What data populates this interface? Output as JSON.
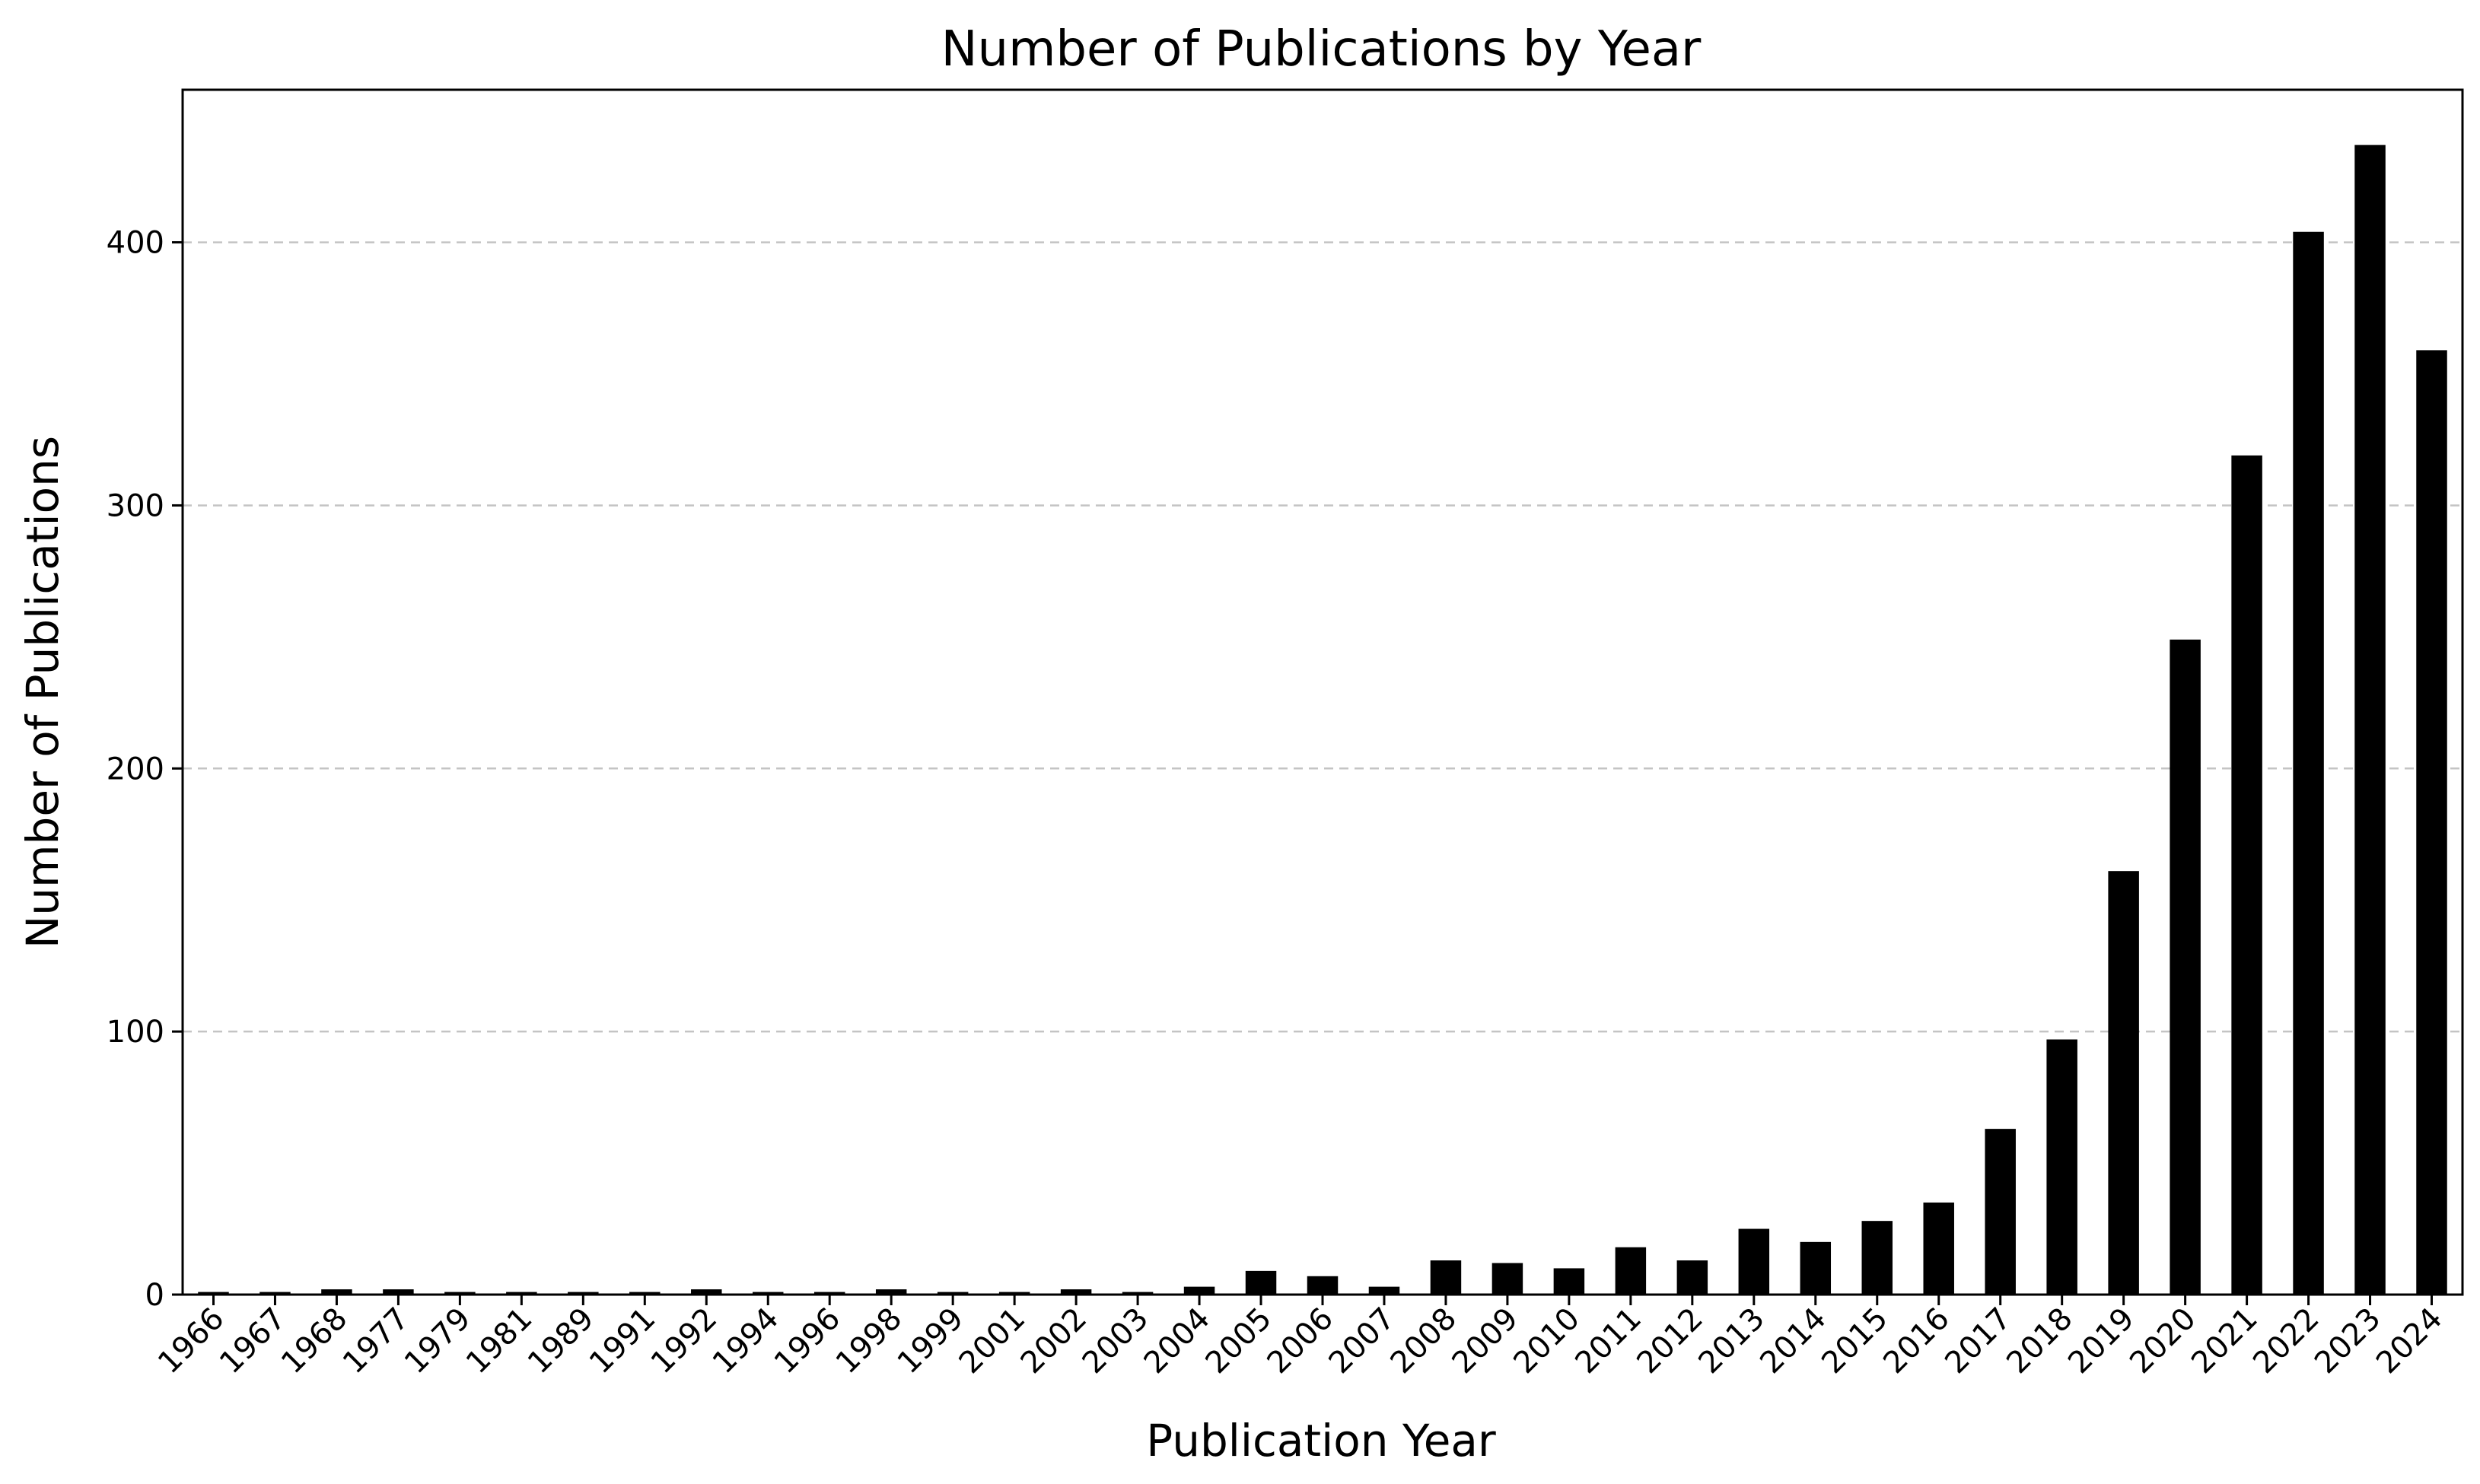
{
  "chart_data": {
    "type": "bar",
    "title": "Number of Publications by Year",
    "xlabel": "Publication Year",
    "ylabel": "Number of Publications",
    "categories": [
      "1966",
      "1967",
      "1968",
      "1977",
      "1979",
      "1981",
      "1989",
      "1991",
      "1992",
      "1994",
      "1996",
      "1998",
      "1999",
      "2001",
      "2002",
      "2003",
      "2004",
      "2005",
      "2006",
      "2007",
      "2008",
      "2009",
      "2010",
      "2011",
      "2012",
      "2013",
      "2014",
      "2015",
      "2016",
      "2017",
      "2018",
      "2019",
      "2020",
      "2021",
      "2022",
      "2023",
      "2024"
    ],
    "values": [
      1,
      1,
      2,
      2,
      1,
      1,
      1,
      1,
      2,
      1,
      1,
      2,
      1,
      1,
      2,
      1,
      3,
      9,
      7,
      3,
      13,
      12,
      10,
      18,
      13,
      25,
      20,
      28,
      35,
      63,
      97,
      161,
      249,
      319,
      404,
      437,
      359
    ],
    "ylim": [
      0,
      458
    ],
    "yticks": [
      0,
      100,
      200,
      300,
      400
    ],
    "grid": "y, dashed",
    "bar_color": "#000000",
    "grid_color": "#c4c4c4"
  }
}
